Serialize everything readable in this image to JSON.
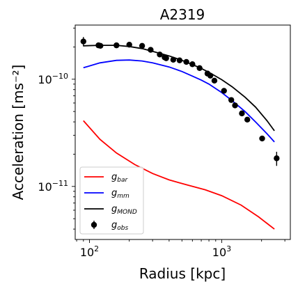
{
  "chart_data": {
    "type": "line",
    "title": "A2319",
    "xlabel": "Radius [kpc]",
    "ylabel": "Acceleration [ms⁻²]",
    "xscale": "log",
    "yscale": "log",
    "xlim": [
      78,
      3300
    ],
    "ylim": [
      3.2e-12,
      3.2e-10
    ],
    "x_ticks": [
      {
        "value": 100,
        "base": "10",
        "exp": "2"
      },
      {
        "value": 1000,
        "base": "10",
        "exp": "3"
      }
    ],
    "y_ticks": [
      {
        "value": 1e-11,
        "base": "10",
        "exp": "−11"
      },
      {
        "value": 1e-10,
        "base": "10",
        "exp": "−10"
      }
    ],
    "grid": false,
    "legend_position": "lower-left",
    "series": [
      {
        "name": "g",
        "sub": "bar",
        "kind": "line",
        "color": "#ff0000",
        "x": [
          90,
          120,
          160,
          220,
          300,
          400,
          550,
          750,
          1000,
          1400,
          1900,
          2500
        ],
        "y": [
          4.1e-11,
          2.75e-11,
          2.05e-11,
          1.6e-11,
          1.32e-11,
          1.15e-11,
          1.03e-11,
          9.3e-12,
          8.2e-12,
          6.7e-12,
          5.2e-12,
          4e-12
        ]
      },
      {
        "name": "g",
        "sub": "mm",
        "kind": "line",
        "color": "#0000ff",
        "x": [
          90,
          120,
          160,
          200,
          250,
          300,
          400,
          500,
          600,
          700,
          800,
          1000,
          1200,
          1500,
          1800,
          2200,
          2500
        ],
        "y": [
          1.28e-10,
          1.42e-10,
          1.5e-10,
          1.51e-10,
          1.48e-10,
          1.42e-10,
          1.3e-10,
          1.18e-10,
          1.07e-10,
          9.8e-11,
          9e-11,
          7.5e-11,
          6.3e-11,
          5e-11,
          4e-11,
          3.1e-11,
          2.6e-11
        ]
      },
      {
        "name": "g",
        "sub": "MOND",
        "kind": "line",
        "color": "#000000",
        "x": [
          90,
          120,
          160,
          200,
          250,
          300,
          400,
          500,
          600,
          700,
          800,
          1000,
          1200,
          1500,
          1800,
          2200,
          2500
        ],
        "y": [
          2.05e-10,
          2.07e-10,
          2.07e-10,
          2.02e-10,
          1.93e-10,
          1.82e-10,
          1.65e-10,
          1.5e-10,
          1.37e-10,
          1.26e-10,
          1.16e-10,
          9.9e-11,
          8.5e-11,
          6.8e-11,
          5.5e-11,
          4.1e-11,
          3.3e-11
        ]
      },
      {
        "name": "g",
        "sub": "obs",
        "kind": "errorbar",
        "color": "#000000",
        "x": [
          90,
          117,
          121,
          160,
          200,
          250,
          290,
          340,
          370,
          380,
          430,
          480,
          540,
          600,
          680,
          780,
          820,
          880,
          1040,
          1180,
          1260,
          1420,
          1560,
          2020,
          2600
        ],
        "y": [
          2.25e-10,
          2.07e-10,
          2.05e-10,
          2.07e-10,
          2.1e-10,
          2.05e-10,
          1.88e-10,
          1.7e-10,
          1.6e-10,
          1.57e-10,
          1.52e-10,
          1.5e-10,
          1.45e-10,
          1.38e-10,
          1.27e-10,
          1.13e-10,
          1.08e-10,
          9.7e-11,
          7.8e-11,
          6.4e-11,
          5.7e-11,
          4.8e-11,
          4.2e-11,
          2.8e-11,
          1.83e-11
        ],
        "yerr_frac": [
          0.1,
          0.03,
          0.03,
          0.03,
          0.03,
          0.03,
          0.03,
          0.03,
          0.03,
          0.03,
          0.03,
          0.03,
          0.03,
          0.03,
          0.03,
          0.03,
          0.03,
          0.03,
          0.03,
          0.04,
          0.04,
          0.04,
          0.05,
          0.06,
          0.15
        ]
      }
    ]
  }
}
